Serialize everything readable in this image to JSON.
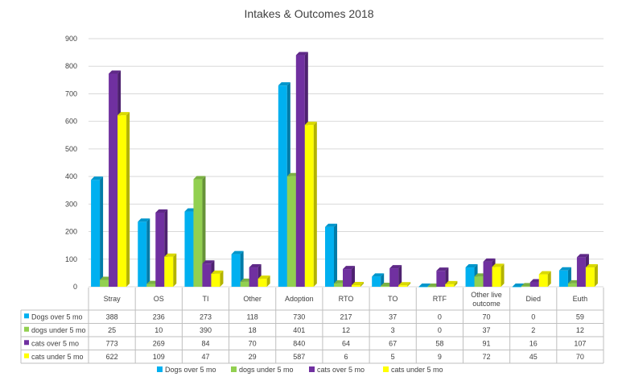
{
  "chart_data": {
    "type": "bar",
    "title": "Intakes & Outcomes 2018",
    "categories": [
      "Stray",
      "OS",
      "TI",
      "Other",
      "Adoption",
      "RTO",
      "TO",
      "RTF",
      "Other live outcome",
      "Died",
      "Euth"
    ],
    "series": [
      {
        "name": "Dogs over 5 mo",
        "color": "#00B0F0",
        "values": [
          388,
          236,
          273,
          118,
          730,
          217,
          37,
          0,
          70,
          0,
          59
        ]
      },
      {
        "name": "dogs under 5 mo",
        "color": "#92D050",
        "values": [
          25,
          10,
          390,
          18,
          401,
          12,
          3,
          0,
          37,
          2,
          12
        ]
      },
      {
        "name": "cats over 5 mo",
        "color": "#7030A0",
        "values": [
          773,
          269,
          84,
          70,
          840,
          64,
          67,
          58,
          91,
          16,
          107
        ]
      },
      {
        "name": "cats under 5 mo",
        "color": "#FFFF00",
        "values": [
          622,
          109,
          47,
          29,
          587,
          6,
          5,
          9,
          72,
          45,
          70
        ]
      }
    ],
    "ylim": [
      0,
      900
    ],
    "yticks": [
      0,
      100,
      200,
      300,
      400,
      500,
      600,
      700,
      800,
      900
    ],
    "grid": true,
    "legend": "bottom",
    "data_table": true
  }
}
